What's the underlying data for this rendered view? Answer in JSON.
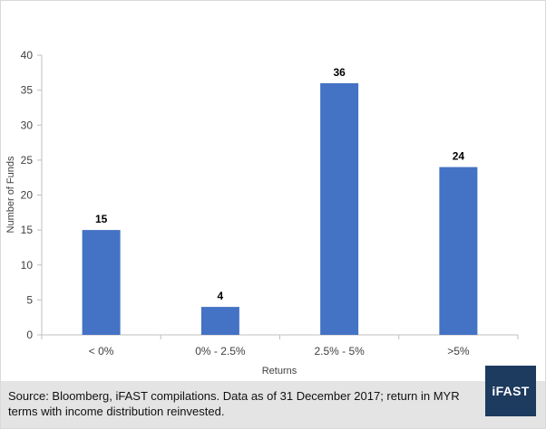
{
  "chart_data": {
    "type": "bar",
    "categories": [
      "< 0%",
      "0% - 2.5%",
      "2.5% - 5%",
      ">5%"
    ],
    "values": [
      15,
      4,
      36,
      24
    ],
    "title": "",
    "xlabel": "Returns",
    "ylabel": "Number of Funds",
    "ylim": [
      0,
      40
    ],
    "yticks": [
      0,
      5,
      10,
      15,
      20,
      25,
      30,
      35,
      40
    ],
    "grid": false,
    "bar_color": "#4472c4",
    "data_labels": true
  },
  "footer": {
    "source": "Source: Bloomberg, iFAST compilations. Data as of 31 December 2017; return in MYR terms with income distribution reinvested.",
    "logo_text": "iFAST",
    "logo_color": "#1d3a5f"
  }
}
